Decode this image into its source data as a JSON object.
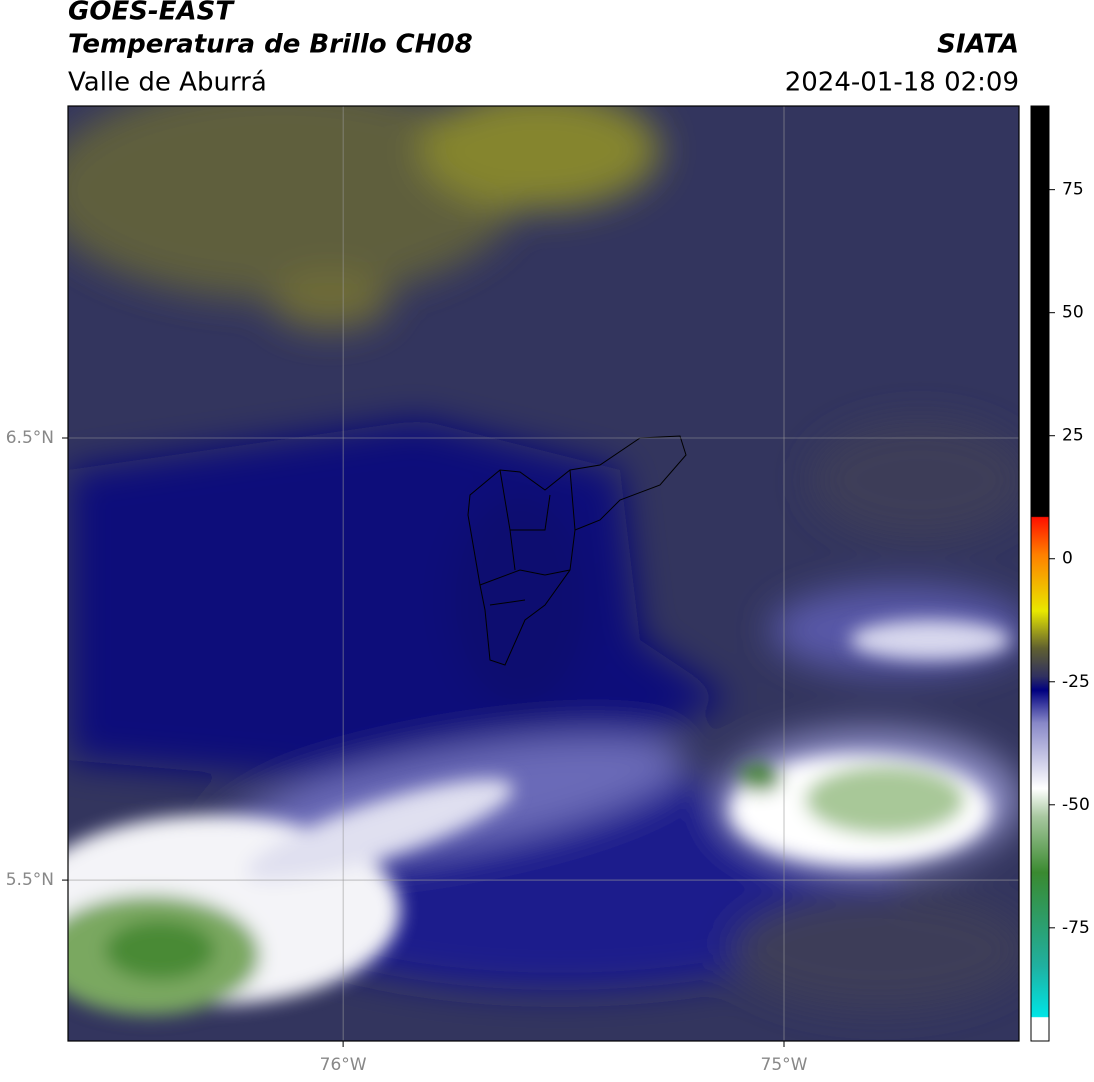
{
  "header": {
    "title": "GOES-EAST",
    "subtitle": "Temperatura de Brillo CH08",
    "region": "Valle de Aburrá",
    "source": "SIATA",
    "datetime": "2024-01-18 02:09"
  },
  "map": {
    "lon_range": [
      -76.624,
      -74.467
    ],
    "lat_range": [
      5.136,
      7.251
    ],
    "lat_ticks": [
      {
        "value": 6.5,
        "label": "6.5°N"
      },
      {
        "value": 5.5,
        "label": "5.5°N"
      }
    ],
    "lon_ticks": [
      {
        "value": -76,
        "label": "76°W"
      },
      {
        "value": -75,
        "label": "75°W"
      }
    ]
  },
  "colorbar": {
    "lim": [
      -98,
      92
    ],
    "ticks": [
      75,
      50,
      25,
      0,
      -25,
      -50,
      -75
    ]
  }
}
